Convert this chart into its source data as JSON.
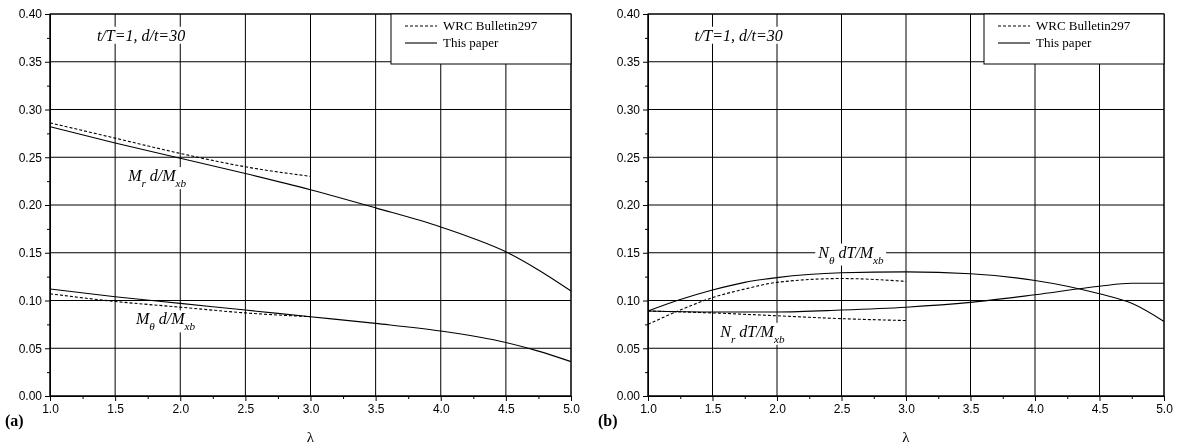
{
  "chart_data": [
    {
      "type": "line",
      "title": "(a)",
      "xlabel": "λ",
      "xlim": [
        1.0,
        5.0
      ],
      "ylim": [
        0.0,
        0.4
      ],
      "xticks": [
        {
          "value": 1,
          "label": "1.0"
        },
        {
          "value": 1.25,
          "label": null
        },
        1.5,
        {
          "value": 1.75,
          "label": null
        },
        {
          "value": 2,
          "label": "2.0"
        },
        {
          "value": 2.25,
          "label": null
        },
        2.5,
        {
          "value": 2.75,
          "label": null
        },
        {
          "value": 3,
          "label": "3.0"
        },
        {
          "value": 3.25,
          "label": null
        },
        3.5,
        {
          "value": 3.75,
          "label": null
        },
        {
          "value": 4,
          "label": "4.0"
        },
        {
          "value": 4.25,
          "label": null
        },
        4.5,
        {
          "value": 4.75,
          "label": null
        },
        {
          "value": 5,
          "label": "5.0"
        }
      ],
      "yticks": [
        {
          "value": 0,
          "label": "0.00"
        },
        {
          "value": 0.025,
          "label": null
        },
        0.05,
        {
          "value": 0.075,
          "label": null
        },
        {
          "value": 0.1,
          "label": "0.10"
        },
        {
          "value": 0.125,
          "label": null
        },
        0.15,
        {
          "value": 0.175,
          "label": null
        },
        {
          "value": 0.2,
          "label": "0.20"
        },
        {
          "value": 0.225,
          "label": null
        },
        0.25,
        {
          "value": 0.275,
          "label": null
        },
        {
          "value": 0.3,
          "label": "0.30"
        },
        {
          "value": 0.325,
          "label": null
        },
        0.35,
        {
          "value": 0.375,
          "label": null
        },
        {
          "value": 0.4,
          "label": "0.40"
        }
      ],
      "grid": true,
      "legend": "top right",
      "annotations": [
        "t/T=1, d/t=30",
        "M$_{r}$ d/M$_{xb}$",
        "M$_{θ}$ d/M$_{xb}$"
      ],
      "series": [
        {
          "name": "WRC Bulletin297",
          "color": "#000000",
          "line_style": "dashed",
          "x": [
            1.0,
            1.5,
            2.0,
            2.5,
            3.0
          ],
          "values": [
            0.286,
            0.27,
            0.254,
            0.24,
            0.23
          ]
        },
        {
          "name": "This paper",
          "color": "#000000",
          "line_style": "solid",
          "x": [
            1.0,
            1.5,
            2.0,
            2.5,
            3.0,
            3.5,
            4.0,
            4.25,
            4.5,
            4.75,
            5.0
          ],
          "values": [
            0.282,
            0.265,
            0.249,
            0.233,
            0.216,
            0.197,
            0.177,
            0.165,
            0.151,
            0.132,
            0.11
          ]
        },
        {
          "color": "#000000",
          "line_style": "dashed",
          "x": [
            1.0,
            1.5,
            2.0,
            2.5,
            3.0
          ],
          "values": [
            0.107,
            0.099,
            0.093,
            0.087,
            0.083
          ]
        },
        {
          "color": "#000000",
          "line_style": "solid",
          "x": [
            1.0,
            1.5,
            2.0,
            2.5,
            3.0,
            3.5,
            4.0,
            4.5,
            4.75,
            5.0
          ],
          "values": [
            0.112,
            0.104,
            0.097,
            0.09,
            0.083,
            0.076,
            0.068,
            0.056,
            0.047,
            0.036
          ]
        }
      ]
    },
    {
      "type": "line",
      "title": "(b)",
      "xlabel": "λ",
      "xlim": [
        1.0,
        5.0
      ],
      "ylim": [
        0.0,
        0.4
      ],
      "xticks": [
        {
          "value": 1,
          "label": "1.0"
        },
        {
          "value": 1.25,
          "label": null
        },
        1.5,
        {
          "value": 1.75,
          "label": null
        },
        {
          "value": 2,
          "label": "2.0"
        },
        {
          "value": 2.25,
          "label": null
        },
        2.5,
        {
          "value": 2.75,
          "label": null
        },
        {
          "value": 3,
          "label": "3.0"
        },
        {
          "value": 3.25,
          "label": null
        },
        3.5,
        {
          "value": 3.75,
          "label": null
        },
        {
          "value": 4,
          "label": "4.0"
        },
        {
          "value": 4.25,
          "label": null
        },
        4.5,
        {
          "value": 4.75,
          "label": null
        },
        {
          "value": 5,
          "label": "5.0"
        }
      ],
      "yticks": [
        {
          "value": 0,
          "label": "0.00"
        },
        {
          "value": 0.025,
          "label": null
        },
        0.05,
        {
          "value": 0.075,
          "label": null
        },
        {
          "value": 0.1,
          "label": "0.10"
        },
        {
          "value": 0.125,
          "label": null
        },
        0.15,
        {
          "value": 0.175,
          "label": null
        },
        {
          "value": 0.2,
          "label": "0.20"
        },
        {
          "value": 0.225,
          "label": null
        },
        0.25,
        {
          "value": 0.275,
          "label": null
        },
        {
          "value": 0.3,
          "label": "0.30"
        },
        {
          "value": 0.325,
          "label": null
        },
        0.35,
        {
          "value": 0.375,
          "label": null
        },
        {
          "value": 0.4,
          "label": "0.40"
        }
      ],
      "grid": true,
      "legend": "top right",
      "annotations": [
        "t/T=1, d/t=30",
        "N$_{θ}$ dT/M$_{xb}$",
        "N$_{r}$ dT/M$_{xb}$"
      ],
      "series": [
        {
          "name": "WRC Bulletin297",
          "color": "#000000",
          "line_style": "dashed",
          "x": [
            1.0,
            1.25,
            1.5,
            1.75,
            2.0,
            2.5,
            3.0
          ],
          "values": [
            0.075,
            0.09,
            0.103,
            0.112,
            0.119,
            0.123,
            0.12
          ]
        },
        {
          "name": "This paper",
          "color": "#000000",
          "line_style": "solid",
          "x": [
            1.0,
            1.25,
            1.5,
            1.75,
            2.0,
            2.5,
            3.0,
            3.5,
            4.0,
            4.25,
            4.5,
            4.75,
            5.0
          ],
          "values": [
            0.089,
            0.101,
            0.111,
            0.119,
            0.124,
            0.129,
            0.13,
            0.128,
            0.121,
            0.115,
            0.107,
            0.097,
            0.078
          ]
        },
        {
          "color": "#000000",
          "line_style": "dashed",
          "x": [
            1.0,
            1.5,
            2.0,
            2.5,
            3.0
          ],
          "values": [
            0.089,
            0.087,
            0.084,
            0.081,
            0.079
          ]
        },
        {
          "color": "#000000",
          "line_style": "solid",
          "x": [
            1.0,
            1.5,
            2.0,
            2.5,
            3.0,
            3.5,
            4.0,
            4.5,
            4.75,
            5.0
          ],
          "values": [
            0.089,
            0.088,
            0.088,
            0.09,
            0.093,
            0.098,
            0.106,
            0.115,
            0.118,
            0.118
          ]
        }
      ]
    }
  ]
}
